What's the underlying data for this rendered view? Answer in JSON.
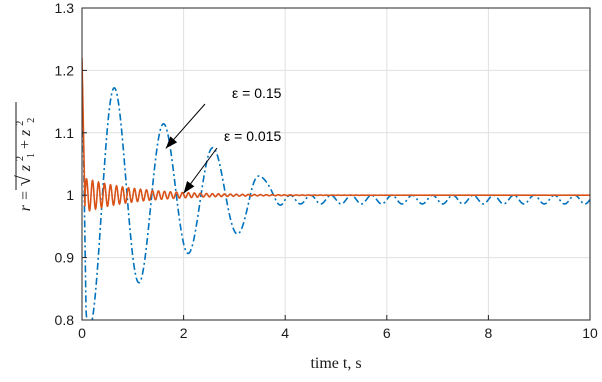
{
  "chart_data": {
    "type": "line",
    "title": "",
    "xlabel": "time t, s",
    "ylabel": "r = sqrt(z1^2 + z2^2)",
    "ylabel_parts": {
      "lhs": "r = ",
      "t1": "z",
      "s1sub": "1",
      "s1sup": "2",
      "plus": " + ",
      "t2": "z",
      "s2sub": "2",
      "s2sup": "2"
    },
    "xlim": [
      0,
      10
    ],
    "ylim": [
      0.8,
      1.3
    ],
    "xticks": [
      0,
      2,
      4,
      6,
      8,
      10
    ],
    "xtick_labels": [
      "0",
      "2",
      "4",
      "6",
      "8",
      "10"
    ],
    "yticks": [
      0.8,
      0.9,
      1.0,
      1.1,
      1.2,
      1.3
    ],
    "ytick_labels": [
      "0.8",
      "0.9",
      "1",
      "1.1",
      "1.2",
      "1.3"
    ],
    "grid": true,
    "series": [
      {
        "label": "ε = 0.15",
        "color": "#0072BD",
        "style": "dash-dot",
        "model": {
          "base": 1.0,
          "amp": 0.225,
          "period": 0.97,
          "phase": 0.16,
          "decay_a": 0.42,
          "tail_amp": 0.007,
          "tail_period": 0.4,
          "tail_start": 4.0,
          "tail_center": 0.993
        },
        "x": [
          0,
          0.05,
          0.2,
          0.4,
          0.62,
          0.85,
          1.1,
          1.35,
          1.6,
          1.85,
          2.1,
          2.35,
          2.6,
          2.9,
          3.2,
          3.5,
          3.8,
          4.0,
          4.5,
          5.0,
          6.0,
          7.0,
          8.0,
          9.0,
          10.0
        ],
        "y": [
          1.2,
          1.03,
          0.815,
          0.99,
          1.16,
          1.02,
          0.855,
          0.99,
          1.075,
          1.0,
          0.92,
          0.99,
          1.03,
          0.99,
          0.955,
          1.0,
          1.008,
          0.985,
          0.993,
          0.993,
          0.993,
          0.993,
          0.993,
          0.993,
          0.99
        ]
      },
      {
        "label": "ε = 0.015",
        "color": "#D95319",
        "style": "solid",
        "model": {
          "base": 1.0,
          "spike": 1.22,
          "period": 0.118,
          "amp0": 0.027,
          "decay": 0.95
        },
        "x": [
          0,
          0.05,
          0.1,
          0.2,
          0.5,
          1.0,
          1.5,
          2.0,
          3.0,
          4.0,
          6.0,
          8.0,
          10.0
        ],
        "y": [
          1.22,
          1.05,
          0.98,
          1.02,
          0.99,
          1.01,
          0.995,
          1.003,
          1.0,
          1.0,
          1.0,
          1.0,
          1.0
        ]
      }
    ],
    "annotations": [
      {
        "text": "ε = 0.15",
        "arrow_to": [
          1.65,
          1.075
        ]
      },
      {
        "text": "ε = 0.015",
        "arrow_to": [
          2.0,
          1.003
        ]
      }
    ]
  }
}
